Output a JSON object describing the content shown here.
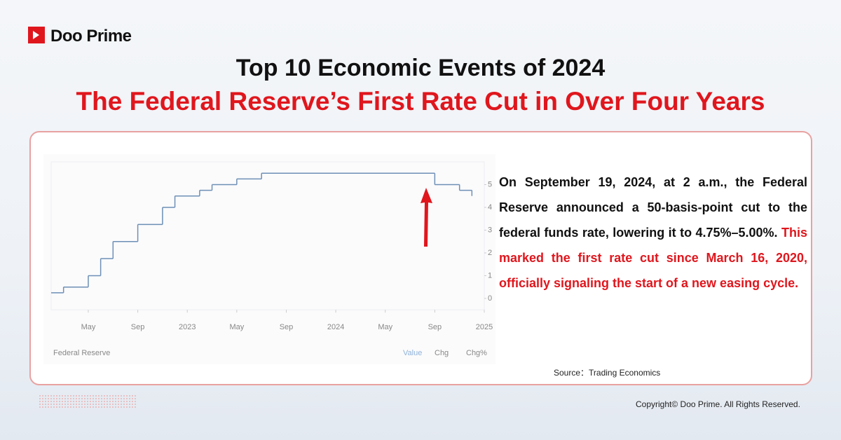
{
  "header": {
    "logo": "Doo Prime",
    "title": "Top 10 Economic Events of 2024",
    "subtitle": "The Federal Reserve’s First Rate Cut in Over Four Years"
  },
  "chart_data": {
    "type": "step",
    "source": "Federal Reserve",
    "tabs": [
      "Value",
      "Chg",
      "Chg%"
    ],
    "series": [
      {
        "name": "Federal Reserve",
        "color": "#6d8fb5",
        "x": [
          "2022-02",
          "2022-03",
          "2022-05",
          "2022-06",
          "2022-07",
          "2022-09",
          "2022-11",
          "2022-12",
          "2023-02",
          "2023-03",
          "2023-05",
          "2023-07",
          "2024-09",
          "2024-11",
          "2024-12"
        ],
        "values": [
          0.25,
          0.5,
          1.0,
          1.75,
          2.5,
          3.25,
          4.0,
          4.5,
          4.75,
          5.0,
          5.25,
          5.5,
          5.0,
          4.75,
          4.5
        ]
      }
    ],
    "xlim": [
      "2022-02",
      "2025-01"
    ],
    "xticks": [
      {
        "value": "2022-05",
        "label": "May"
      },
      {
        "value": "2022-09",
        "label": "Sep"
      },
      {
        "value": "2023-01",
        "label": "2023"
      },
      {
        "value": "2023-05",
        "label": "May"
      },
      {
        "value": "2023-09",
        "label": "Sep"
      },
      {
        "value": "2024-01",
        "label": "2024"
      },
      {
        "value": "2024-05",
        "label": "May"
      },
      {
        "value": "2024-09",
        "label": "Sep"
      },
      {
        "value": "2025-01",
        "label": "2025"
      }
    ],
    "ylim": [
      -0.5,
      6
    ],
    "yticks": [
      0,
      1,
      2,
      3,
      4,
      5
    ]
  },
  "body": {
    "text_black": "On September 19, 2024, at 2 a.m., the Federal Reserve announced a 50-basis-point cut to the federal funds rate, lowering it to 4.75%–5.00%.",
    "text_red": "This marked the first rate cut since March 16, 2020, officially signaling the start of a new easing cycle."
  },
  "source": "Source：Trading Economics",
  "footer": {
    "copyright": "Copyright© Doo Prime. All Rights Reserved."
  }
}
